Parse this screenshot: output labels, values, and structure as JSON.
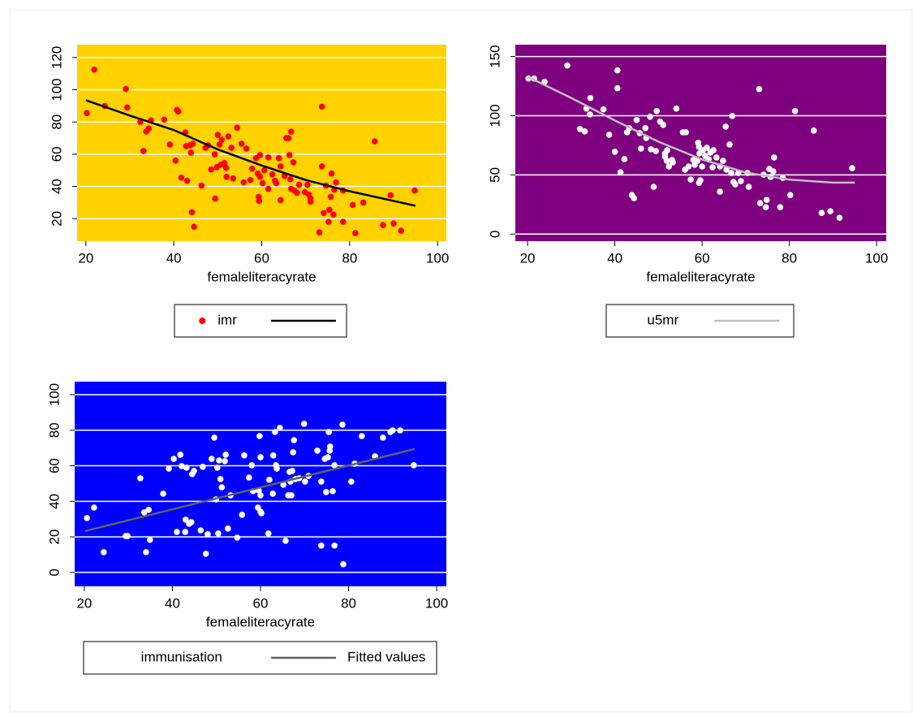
{
  "chart_data": [
    {
      "type": "scatter",
      "x_label": "femaleliteracyrate",
      "background": "#ffd200",
      "grid": true,
      "legend": "bottom",
      "xlim": [
        18,
        102
      ],
      "xticks": [
        20,
        40,
        60,
        80,
        100
      ],
      "ylim": [
        6,
        128
      ],
      "yticks": [
        20,
        40,
        60,
        80,
        100,
        120
      ],
      "series": [
        {
          "name": "imr",
          "mark": "point",
          "color": "#ff0000",
          "x": [
            20.2,
            21.9,
            24.3,
            29.1,
            29.4,
            32.4,
            33.1,
            33.7,
            34.3,
            34.8,
            37.8,
            39.1,
            40.4,
            40.7,
            41,
            41.7,
            42.6,
            42.8,
            43,
            43.7,
            43.9,
            44.1,
            44.3,
            44.6,
            46.3,
            47.2,
            47.8,
            48.5,
            49.3,
            49.4,
            49.8,
            50,
            50.4,
            50.7,
            50.9,
            51.5,
            51.9,
            52,
            52.4,
            53.1,
            53.5,
            54.4,
            55.4,
            55.9,
            56.5,
            57.4,
            57.8,
            58.7,
            59.1,
            59.3,
            59.4,
            59.6,
            59.6,
            60.2,
            60.6,
            61.5,
            61.5,
            62.4,
            63,
            63.3,
            63.9,
            64.3,
            64.3,
            65.2,
            65.6,
            66.1,
            66.3,
            66.5,
            66.7,
            66.7,
            67.2,
            67.4,
            68,
            68.5,
            69.8,
            70.4,
            70.7,
            71.1,
            71.1,
            73.1,
            73.7,
            73.7,
            74.1,
            74.6,
            75.2,
            75.4,
            75.7,
            75.9,
            76.3,
            76.5,
            76.9,
            78.5,
            78.5,
            80.7,
            81.3,
            83.1,
            85.7,
            87.6,
            89.3,
            90,
            91.7,
            94.8
          ],
          "values": [
            85.5,
            112.5,
            90,
            100.5,
            89,
            80,
            62,
            74,
            76,
            81,
            81.5,
            66,
            56,
            87.5,
            86.5,
            45.5,
            73.5,
            65,
            43.5,
            65.5,
            61,
            24,
            66.5,
            15,
            40.5,
            64,
            65.5,
            50.5,
            60,
            32.5,
            52,
            72,
            66,
            53.5,
            69,
            54.5,
            51.5,
            46,
            71,
            64,
            45,
            76.5,
            66.5,
            42.5,
            63.5,
            44,
            51,
            57.5,
            48,
            33.5,
            31,
            59.5,
            46,
            42,
            50,
            58,
            38.5,
            47.5,
            43.5,
            42,
            57.5,
            31.5,
            52.5,
            46.5,
            70,
            70,
            59.5,
            44.5,
            74,
            38.5,
            55,
            37.5,
            36,
            41,
            36.5,
            41,
            35,
            32.5,
            30.5,
            11.5,
            89.5,
            52.5,
            23.5,
            40.5,
            18,
            25.5,
            33.5,
            48,
            22.5,
            38,
            42.5,
            37.5,
            18,
            28.5,
            11,
            30,
            68,
            16,
            34.5,
            17,
            12.5,
            37.5
          ]
        },
        {
          "mark": "line",
          "color": "#000000",
          "x": [
            20,
            30,
            40,
            50,
            60,
            70,
            80,
            90,
            95
          ],
          "values": [
            93.5,
            84,
            75,
            63,
            53,
            44,
            37,
            31,
            28
          ]
        }
      ]
    },
    {
      "type": "scatter",
      "x_label": "femaleliteracyrate",
      "background": "#7f007f",
      "grid": true,
      "legend": "bottom",
      "xlim": [
        17.2,
        102.2
      ],
      "xticks": [
        20,
        40,
        60,
        80,
        100
      ],
      "ylim": [
        -6,
        160
      ],
      "yticks": [
        0,
        50,
        100,
        150
      ],
      "series": [
        {
          "name": "u5mr",
          "mark": "point",
          "color": "#ffffff",
          "x": [
            20.2,
            21.5,
            23.9,
            29.1,
            32,
            33.1,
            33.5,
            34.3,
            34.4,
            37.4,
            38.7,
            40,
            40.6,
            40.6,
            41.3,
            42.2,
            42.8,
            43.3,
            43.9,
            44.4,
            45,
            45.7,
            46,
            47,
            47.2,
            48.1,
            48.3,
            48.9,
            49.4,
            49.6,
            50.4,
            51.1,
            51.5,
            51.5,
            51.9,
            52,
            52.4,
            53.1,
            53.3,
            54.1,
            55.6,
            56.1,
            56.3,
            56.9,
            57.4,
            58,
            58.3,
            58.9,
            59.1,
            59.3,
            59.3,
            59.4,
            59.6,
            60,
            60.2,
            60.7,
            61.1,
            61.5,
            61.9,
            62.4,
            62.6,
            63.3,
            64.1,
            64.1,
            64.8,
            65.4,
            65.6,
            66.3,
            66.7,
            66.9,
            67.2,
            67.6,
            68.3,
            68.9,
            70.4,
            70.7,
            73.1,
            73.3,
            74.1,
            74.6,
            74.8,
            75.4,
            75.7,
            76.3,
            76.5,
            77.9,
            78.5,
            80.2,
            81.3,
            85.6,
            87.4,
            89.4,
            91.5,
            94.4
          ],
          "values": [
            131.4,
            131.4,
            128.7,
            142.4,
            88.8,
            86.7,
            106,
            101.1,
            114.9,
            105.3,
            83.9,
            69.5,
            123.2,
            138.3,
            52.3,
            63.3,
            86,
            89.5,
            33,
            30.3,
            96.3,
            85.3,
            72.2,
            89.5,
            81.2,
            99.1,
            71.6,
            39.9,
            70.2,
            103.9,
            95,
            92.2,
            68.1,
            65.4,
            61.9,
            70.9,
            57.1,
            62.6,
            60.6,
            106,
            86,
            54.4,
            86,
            57.1,
            46.1,
            62.6,
            58.5,
            61.9,
            77.1,
            73.6,
            43.3,
            68.1,
            45.4,
            57.1,
            70.9,
            66.1,
            72.9,
            63.3,
            68.8,
            56.4,
            70.9,
            64.7,
            57.1,
            35.8,
            61.9,
            90.8,
            54.4,
            75.7,
            51.6,
            99.8,
            44,
            42,
            51.6,
            44.7,
            51.6,
            39.9,
            122.5,
            26.1,
            50.2,
            22.7,
            28.9,
            55,
            48.2,
            53,
            64.7,
            22.7,
            47.5,
            33,
            103.9,
            87.4,
            17.9,
            19.3,
            13.8,
            55.7
          ]
        },
        {
          "mark": "line",
          "color": "#c0c0c0",
          "x": [
            20,
            30,
            40,
            50,
            60,
            70,
            80,
            90,
            95
          ],
          "values": [
            133,
            115,
            96,
            78,
            63,
            52,
            46,
            43.5,
            43.5
          ]
        }
      ]
    },
    {
      "type": "scatter",
      "x_label": "femaleliteracyrate",
      "background": "#0000ff",
      "grid": true,
      "legend": "bottom",
      "xlim": [
        17.8,
        102.2
      ],
      "xticks": [
        20,
        40,
        60,
        80,
        100
      ],
      "ylim": [
        -7.8,
        107.3
      ],
      "yticks": [
        0,
        20,
        40,
        60,
        80,
        100
      ],
      "series": [
        {
          "name": "immunisation",
          "mark": "point",
          "color": "#ffffff",
          "x": [
            20.6,
            22.2,
            24.4,
            29.4,
            29.8,
            32.7,
            33.6,
            34,
            34.6,
            34.9,
            37.9,
            39.2,
            40.3,
            41,
            41.8,
            42.1,
            42.9,
            43,
            43.2,
            43.8,
            44.3,
            44.5,
            44.9,
            46.4,
            46.9,
            47.6,
            48,
            48.9,
            49.5,
            49.9,
            50.2,
            50.4,
            50.6,
            50.9,
            51.2,
            51.9,
            52.1,
            52.6,
            53.2,
            54.7,
            55.8,
            56.3,
            57.4,
            58,
            58.3,
            59.4,
            59.6,
            59.8,
            60,
            60,
            60,
            60.2,
            61.8,
            62,
            62.8,
            62.9,
            63.3,
            63.5,
            63.7,
            64.4,
            65.2,
            65.7,
            66.3,
            66.6,
            66.8,
            67,
            67.2,
            67.4,
            67.6,
            67.9,
            68.8,
            69.9,
            70.1,
            70.9,
            72.9,
            73.8,
            73.8,
            74.6,
            74.9,
            75.3,
            75.5,
            75.7,
            75.8,
            76.4,
            76.8,
            76.8,
            78.6,
            78.8,
            80.6,
            81.4,
            83,
            86,
            87.8,
            89.5,
            90,
            91.7,
            94.8
          ],
          "values": [
            30.6,
            36.5,
            11.4,
            20.5,
            20.5,
            53,
            33.8,
            11.4,
            35.2,
            18.3,
            44.3,
            58.4,
            63.9,
            22.8,
            66.2,
            59.8,
            22.8,
            29.7,
            58.9,
            27.4,
            28.3,
            55.3,
            57.1,
            23.7,
            59.4,
            10.5,
            21.5,
            63.9,
            75.8,
            41.1,
            58.9,
            21.9,
            63,
            52.5,
            47.9,
            62.6,
            66.2,
            24.7,
            43.4,
            19.6,
            32.4,
            65.8,
            53.4,
            60.3,
            45.7,
            36.5,
            46.1,
            76.7,
            43.4,
            64.8,
            34.2,
            33.3,
            21.9,
            52.1,
            44.3,
            65.8,
            79,
            60.3,
            58.4,
            81.3,
            49.3,
            17.8,
            43.4,
            56.6,
            51.1,
            43.4,
            57.1,
            67.6,
            74.4,
            52.5,
            53,
            83.6,
            51.1,
            54.3,
            68.5,
            51.1,
            15.1,
            63.9,
            45.2,
            64.8,
            79,
            68.5,
            70.8,
            45.7,
            15.1,
            60.3,
            83.1,
            4.6,
            51.1,
            61.2,
            76.7,
            65.3,
            75.8,
            79,
            79.9,
            79.9,
            60.3
          ]
        },
        {
          "name": "Fitted values",
          "mark": "line",
          "color": "#606060",
          "x": [
            20.2,
            95
          ],
          "values": [
            23.3,
            69.4
          ]
        }
      ]
    }
  ]
}
